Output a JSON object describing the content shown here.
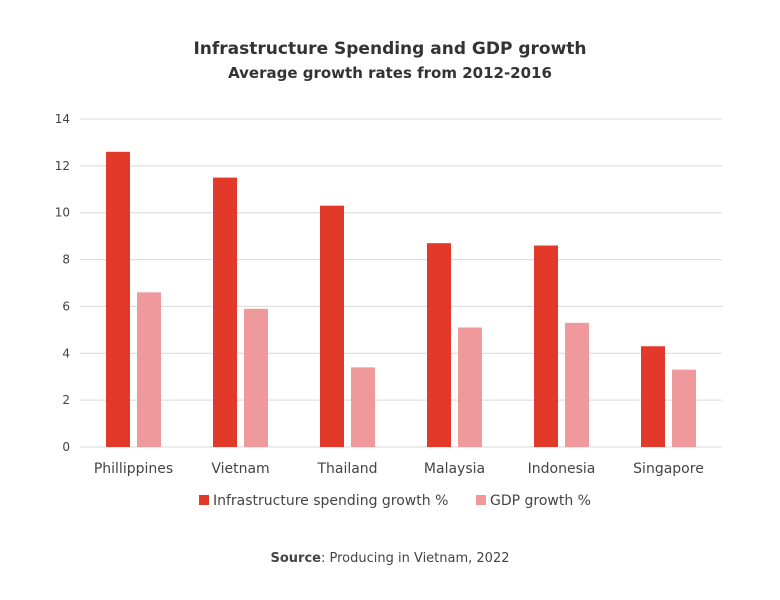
{
  "chart_data": {
    "type": "bar",
    "title": "Infrastructure Spending and GDP growth",
    "subtitle": "Average growth rates from 2012-2016",
    "categories": [
      "Phillippines",
      "Vietnam",
      "Thailand",
      "Malaysia",
      "Indonesia",
      "Singapore"
    ],
    "series": [
      {
        "name": "Infrastructure spending growth %",
        "color": "#e2392b",
        "values": [
          12.6,
          11.5,
          10.3,
          8.7,
          8.6,
          4.3
        ]
      },
      {
        "name": "GDP growth %",
        "color": "#ef999c",
        "values": [
          6.6,
          5.9,
          3.4,
          5.1,
          5.3,
          3.3
        ]
      }
    ],
    "ylim": [
      0,
      14
    ],
    "yticks": [
      0,
      2,
      4,
      6,
      8,
      10,
      12,
      14
    ],
    "grid": true,
    "legend": "bottom",
    "xlabel": "",
    "ylabel": ""
  },
  "source": {
    "label": "Source",
    "text": ": Producing in Vietnam, 2022"
  }
}
